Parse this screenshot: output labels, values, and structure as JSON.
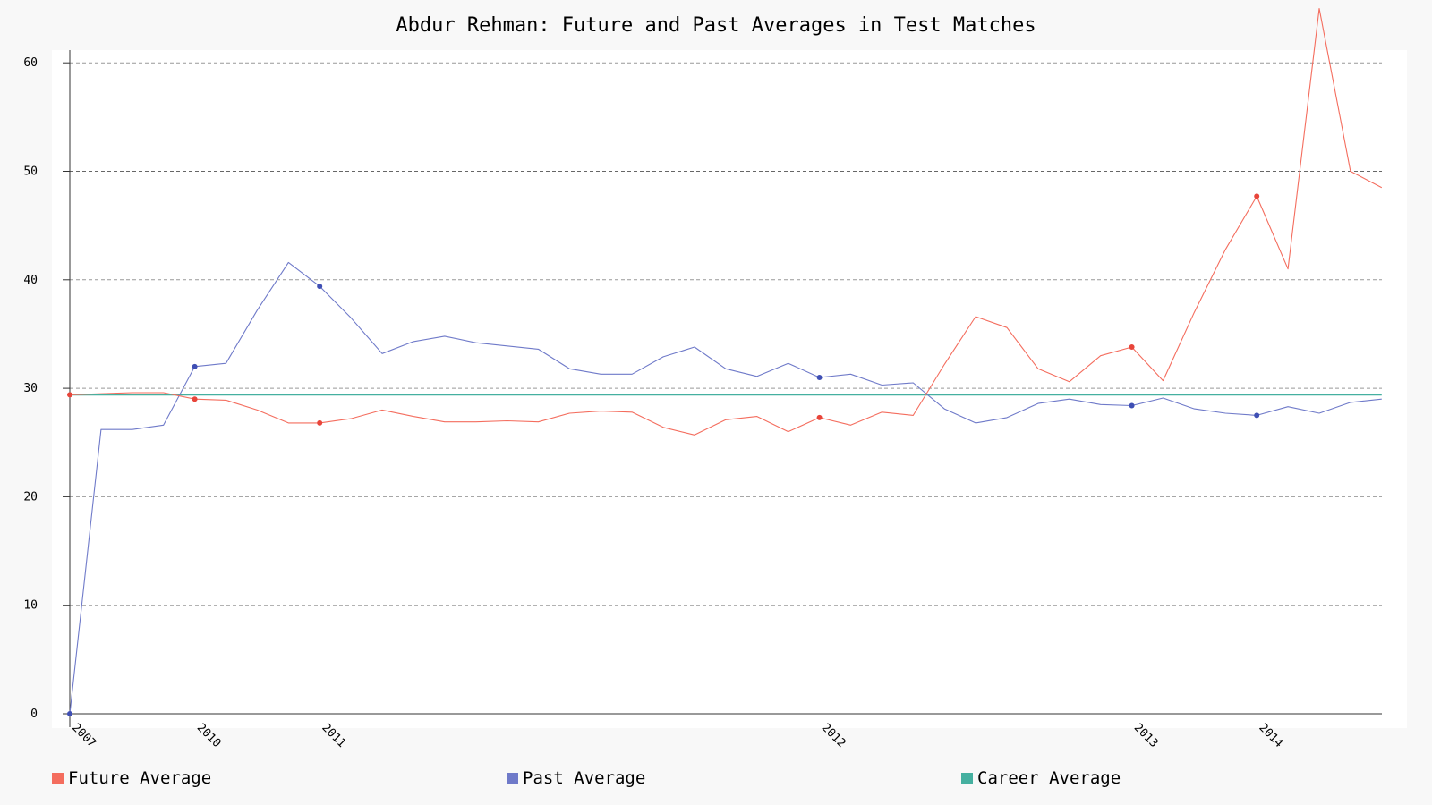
{
  "chart_data": {
    "type": "line",
    "title": "Abdur Rehman: Future and Past Averages in Test Matches",
    "xlabel": "",
    "ylabel": "",
    "ylim": [
      0,
      60
    ],
    "yticks": [
      0,
      10,
      20,
      30,
      40,
      50,
      60
    ],
    "grid": true,
    "legend_position": "bottom",
    "x_tick_labels": [
      {
        "index": 0,
        "label": "2007"
      },
      {
        "index": 4,
        "label": "2010"
      },
      {
        "index": 8,
        "label": "2011"
      },
      {
        "index": 24,
        "label": "2012"
      },
      {
        "index": 34,
        "label": "2013"
      },
      {
        "index": 38,
        "label": "2014"
      }
    ],
    "series": [
      {
        "name": "Future Average",
        "color": "#f46d5e",
        "values": [
          29.4,
          29.5,
          29.6,
          29.6,
          29.0,
          28.9,
          28.0,
          26.8,
          26.8,
          27.2,
          28.0,
          27.4,
          26.9,
          26.9,
          27.0,
          26.9,
          27.7,
          27.9,
          27.8,
          26.4,
          25.7,
          27.1,
          27.4,
          26.0,
          27.3,
          26.6,
          27.8,
          27.5,
          32.2,
          36.6,
          35.6,
          31.8,
          30.6,
          33.0,
          33.8,
          30.7,
          37.0,
          42.8,
          47.7,
          41.0,
          65.0,
          50.0,
          48.5
        ],
        "markers": [
          0,
          4,
          8,
          24,
          34,
          38
        ]
      },
      {
        "name": "Past Average",
        "color": "#6f7ac9",
        "values": [
          0,
          26.2,
          26.2,
          26.6,
          32.0,
          32.3,
          37.2,
          41.6,
          39.4,
          36.5,
          33.2,
          34.3,
          34.8,
          34.2,
          33.9,
          33.6,
          31.8,
          31.3,
          31.3,
          32.9,
          33.8,
          31.8,
          31.1,
          32.3,
          31.0,
          31.3,
          30.3,
          30.5,
          28.1,
          26.8,
          27.3,
          28.6,
          29.0,
          28.5,
          28.4,
          29.1,
          28.1,
          27.7,
          27.5,
          28.3,
          27.7,
          28.7,
          29.0
        ],
        "markers": [
          0,
          4,
          8,
          24,
          34,
          38
        ]
      },
      {
        "name": "Career Average",
        "color": "#45b0a0",
        "values": [
          29.4,
          29.4,
          29.4,
          29.4,
          29.4,
          29.4,
          29.4,
          29.4,
          29.4,
          29.4,
          29.4,
          29.4,
          29.4,
          29.4,
          29.4,
          29.4,
          29.4,
          29.4,
          29.4,
          29.4,
          29.4,
          29.4,
          29.4,
          29.4,
          29.4,
          29.4,
          29.4,
          29.4,
          29.4,
          29.4,
          29.4,
          29.4,
          29.4,
          29.4,
          29.4,
          29.4,
          29.4,
          29.4,
          29.4,
          29.4,
          29.4,
          29.4,
          29.4
        ],
        "markers": []
      }
    ]
  }
}
